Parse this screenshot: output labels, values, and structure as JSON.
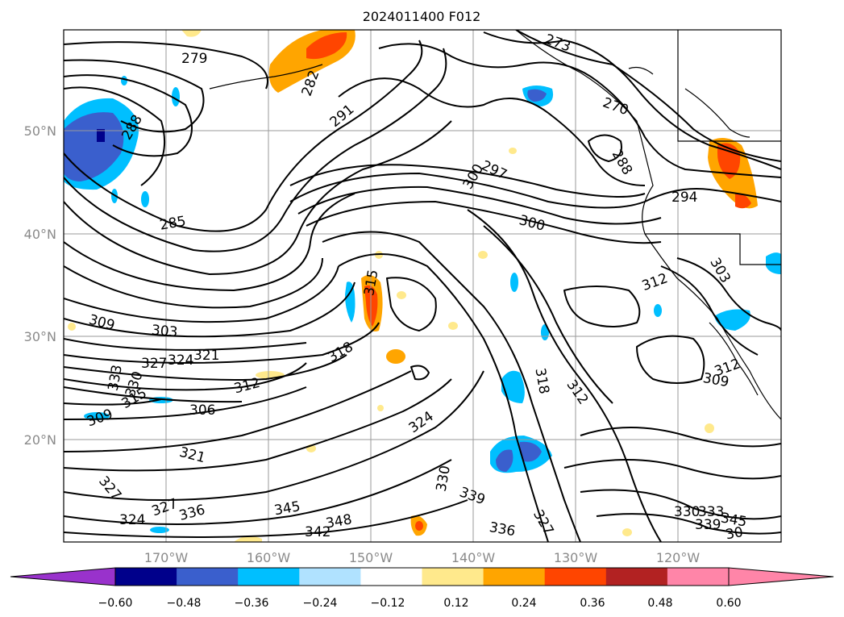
{
  "title": "2024011400 F012",
  "map": {
    "lon_ticks": [
      "170°W",
      "160°W",
      "150°W",
      "140°W",
      "130°W",
      "120°W"
    ],
    "lat_ticks": [
      "50°N",
      "40°N",
      "30°N",
      "20°N"
    ]
  },
  "colorbar": {
    "labels": [
      "−0.60",
      "−0.48",
      "−0.36",
      "−0.24",
      "−0.12",
      "0.12",
      "0.24",
      "0.36",
      "0.48",
      "0.60"
    ],
    "colors": [
      "#9932cc",
      "#00008b",
      "#3a5fcd",
      "#00bfff",
      "#b0e2ff",
      "#ffffff",
      "#ffe98c",
      "#ffa500",
      "#ff4500",
      "#b22222",
      "#ff85a8",
      "#ff85a8"
    ]
  },
  "contour_labels": [
    "279",
    "282",
    "291",
    "273",
    "270",
    "288",
    "285",
    "297",
    "300",
    "300",
    "294",
    "288",
    "303",
    "312",
    "315",
    "309",
    "303",
    "327",
    "324",
    "321",
    "318",
    "312",
    "333",
    "330",
    "315",
    "306",
    "309",
    "318",
    "312",
    "309",
    "312",
    "324",
    "321",
    "327",
    "324",
    "327",
    "336",
    "330",
    "339",
    "345",
    "348",
    "342",
    "336",
    "327",
    "330",
    "333",
    "339",
    "345",
    "30"
  ]
}
